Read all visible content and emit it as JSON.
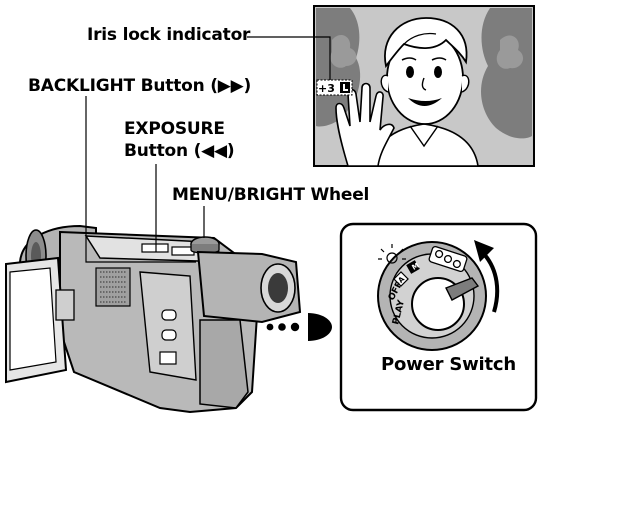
{
  "labels": {
    "iris": "Iris lock indicator",
    "backlight": "BACKLIGHT Button (▶▶)",
    "exposure_line1": "EXPOSURE",
    "exposure_line2": "Button (◀◀)",
    "menu": "MENU/BRIGHT Wheel",
    "power": "Power Switch"
  },
  "iris_indicator": "+3",
  "dial": {
    "off": "OFF",
    "play": "PLAY",
    "auto": "A",
    "manual": "M"
  },
  "colors": {
    "ink": "#000000",
    "gray": "#b4b4b4",
    "dark_gray": "#7d7d7d",
    "light_gray": "#e2e2e2"
  }
}
